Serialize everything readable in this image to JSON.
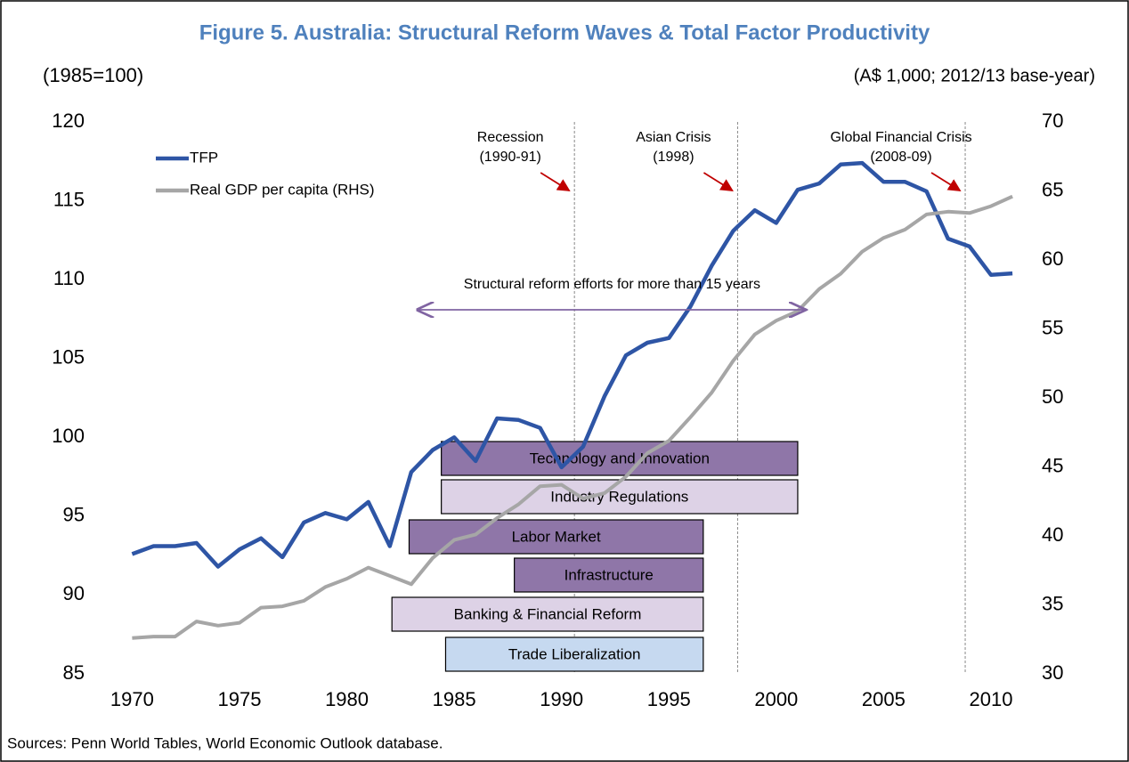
{
  "chart_data": {
    "type": "line",
    "title": "Figure 5. Australia: Structural Reform Waves & Total Factor Productivity",
    "y_label": "(1985=100)",
    "y2_label": "(A$ 1,000; 2012/13 base-year)",
    "source": "Sources:  Penn World Tables, World Economic Outlook database.",
    "x": [
      1970,
      1971,
      1972,
      1973,
      1974,
      1975,
      1976,
      1977,
      1978,
      1979,
      1980,
      1981,
      1982,
      1983,
      1984,
      1985,
      1986,
      1987,
      1988,
      1989,
      1990,
      1991,
      1992,
      1993,
      1994,
      1995,
      1996,
      1997,
      1998,
      1999,
      2000,
      2001,
      2002,
      2003,
      2004,
      2005,
      2006,
      2007,
      2008,
      2009,
      2010,
      2011
    ],
    "series": [
      {
        "name": "TFP",
        "color": "#2e55a5",
        "values": [
          92.6,
          93.1,
          93.1,
          93.3,
          91.8,
          92.9,
          93.6,
          92.4,
          94.6,
          95.2,
          94.8,
          95.9,
          93.1,
          97.8,
          99.2,
          100.0,
          98.5,
          101.2,
          101.1,
          100.6,
          98.1,
          99.4,
          102.6,
          105.2,
          106.0,
          106.3,
          108.3,
          110.9,
          113.1,
          114.4,
          113.6,
          115.7,
          116.1,
          117.3,
          117.4,
          116.2,
          116.2,
          115.6,
          112.6,
          112.1,
          110.3,
          110.4
        ]
      },
      {
        "name": "Real GDP per capita (RHS)",
        "color": "#a6a6a6",
        "axis": "y2",
        "values": [
          32.6,
          32.7,
          32.7,
          33.8,
          33.5,
          33.7,
          34.8,
          34.9,
          35.3,
          36.3,
          36.9,
          37.7,
          37.1,
          36.5,
          38.4,
          39.7,
          40.1,
          41.3,
          42.3,
          43.6,
          43.7,
          42.7,
          43.1,
          44.3,
          46.0,
          46.9,
          48.6,
          50.4,
          52.7,
          54.6,
          55.6,
          56.3,
          57.9,
          59.0,
          60.6,
          61.6,
          62.2,
          63.3,
          63.5,
          63.4,
          63.9,
          64.6
        ]
      }
    ],
    "xlim": [
      1968.2,
      2011.95
    ],
    "xticks": [
      1970,
      1975,
      1980,
      1985,
      1990,
      1995,
      2000,
      2005,
      2010
    ],
    "ylim": [
      85,
      120
    ],
    "yticks": [
      85,
      90,
      95,
      100,
      105,
      110,
      115,
      120
    ],
    "y2lim": [
      30,
      70
    ],
    "y2ticks": [
      30,
      35,
      40,
      45,
      50,
      55,
      60,
      65,
      70
    ],
    "events": [
      {
        "label": [
          "Recession",
          "(1990-91)"
        ],
        "x": 1990.6
      },
      {
        "label": [
          "Asian Crisis",
          "(1998)"
        ],
        "x": 1998.2
      },
      {
        "label": [
          "Global Financial Crisis",
          "(2008-09)"
        ],
        "x": 2008.8
      }
    ],
    "span": {
      "label": "Structural reform efforts for more than 15 years",
      "start": 1983.3,
      "end": 2001.4,
      "color": "#8064a2"
    },
    "reforms": [
      {
        "label": "Technology and Innovation",
        "start": 1984.4,
        "end": 2001.0,
        "color": "#8f76a8"
      },
      {
        "label": "Industry Regulations",
        "start": 1984.4,
        "end": 2001.0,
        "color": "#ddd2e6"
      },
      {
        "label": "Labor Market",
        "start": 1982.9,
        "end": 1996.6,
        "color": "#8f76a8"
      },
      {
        "label": "Infrastructure",
        "start": 1987.8,
        "end": 1996.6,
        "color": "#8f76a8"
      },
      {
        "label": "Banking & Financial Reform",
        "start": 1982.1,
        "end": 1996.6,
        "color": "#ddd2e6"
      },
      {
        "label": "Trade Liberalization",
        "start": 1984.6,
        "end": 1996.6,
        "color": "#c6d9f0"
      }
    ]
  }
}
